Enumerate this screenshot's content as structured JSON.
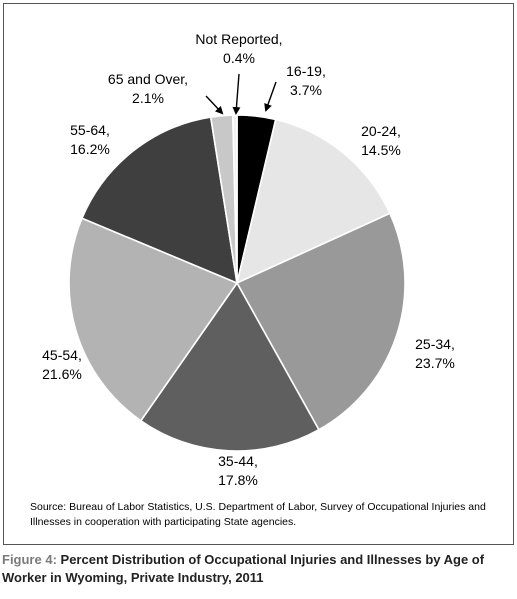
{
  "chart_data": {
    "type": "pie",
    "categories": [
      "16-19",
      "20-24",
      "25-34",
      "35-44",
      "45-54",
      "55-64",
      "65 and Over,",
      "Not Reported,"
    ],
    "values": [
      3.7,
      14.5,
      23.7,
      17.8,
      21.6,
      16.2,
      2.1,
      0.4
    ],
    "value_labels": [
      "3.7%",
      "14.5%",
      "23.7%",
      "17.8%",
      "21.6%",
      "16.2%",
      "2.1%",
      "0.4%"
    ],
    "slice_label_texts": [
      "16-19,",
      "20-24,",
      "25-34,",
      "35-44,",
      "45-54,",
      "55-64,",
      "65 and Over,",
      "Not Reported,"
    ],
    "colors": [
      "#000000",
      "#e6e6e6",
      "#999999",
      "#5f5f5f",
      "#b3b3b3",
      "#3f3f3f",
      "#c8c8c8",
      "#f2f2f2"
    ],
    "title": "Percent Distribution of Occupational Injuries and Illnesses by Age of Worker in Wyoming, Private Industry, 2011",
    "legend": "none"
  },
  "source_note": "Source: Bureau of Labor Statistics, U.S. Department of Labor, Survey of Occupational Injuries and Illnesses in cooperation with participating State agencies.",
  "caption": {
    "figure_label": "Figure 4:",
    "text": "Percent Distribution of Occupational Injuries and Illnesses by Age of Worker in Wyoming, Private Industry, 2011"
  }
}
